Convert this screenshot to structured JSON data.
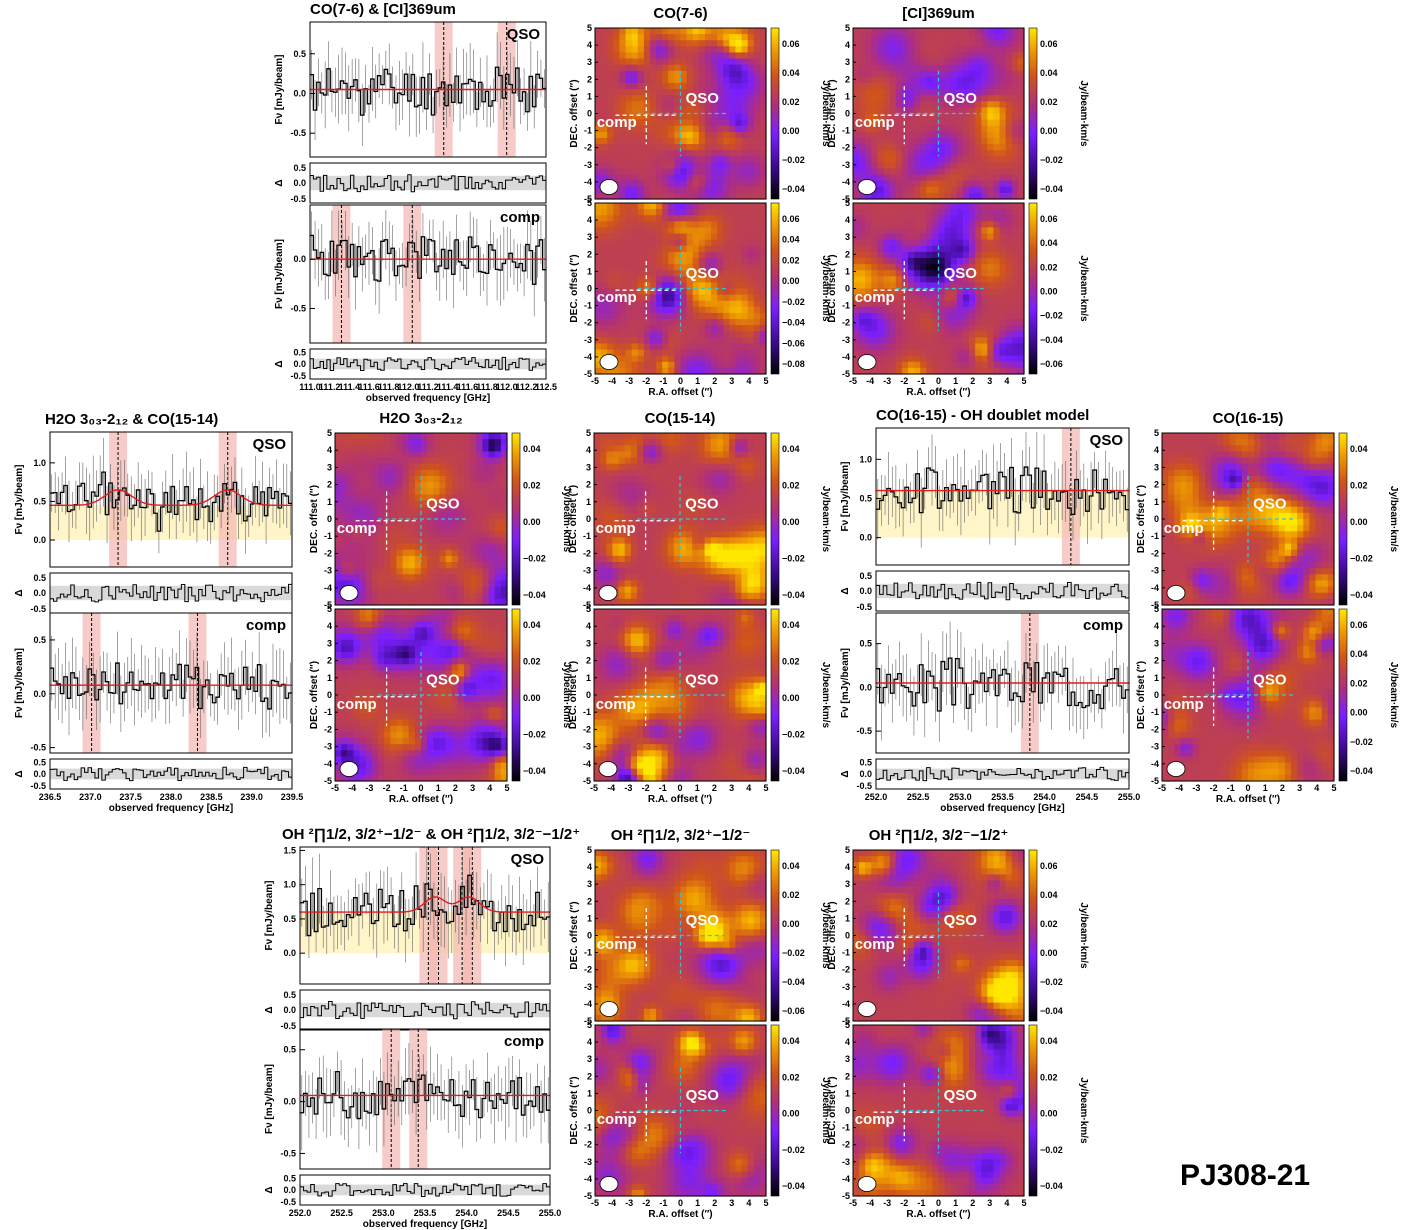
{
  "figure_label": "PJ308-21",
  "labels": {
    "flux_axis": "Fν [mJy/beam]",
    "resid_axis": "Δ",
    "freq_axis": "observed frequency [GHz]",
    "ra_axis": "R.A. offset (″)",
    "dec_axis": "DEC. offset (″)",
    "cbar_unit": "Jy/beam·km/s",
    "qso": "QSO",
    "comp": "comp"
  },
  "colors": {
    "spectrum": "#000000",
    "model": "#e31a1c",
    "line_band": "#f4b6b0",
    "continuum_band": "#fff5c8",
    "resid_band": "#d9d9d9",
    "cross_qso": "#35c4d4",
    "cross_comp": "#ffffff",
    "map_low": "#000000",
    "map_mid1": "#7a1fff",
    "map_mid2": "#c8431e",
    "map_high": "#ffd600"
  },
  "chart_data": [
    {
      "id": "s1",
      "type": "line",
      "title": "CO(7-6) & [CI]369um",
      "target": "QSO",
      "xlabel": "",
      "ylabel": "Fν [mJy/beam]",
      "xlim": [
        111.0,
        112.5
      ],
      "ylim": [
        -0.8,
        0.9
      ],
      "yticks": [
        -0.5,
        0.0,
        0.5
      ],
      "continuum": 0.05,
      "line_markers": [
        111.85,
        112.25
      ],
      "model": "flat",
      "resid_yticks": [
        -0.5,
        0.0,
        0.5
      ],
      "xticks": [],
      "seed": 11
    },
    {
      "id": "s2",
      "type": "line",
      "title": "",
      "target": "comp",
      "xlabel": "observed frequency [GHz]",
      "ylabel": "Fν [mJy/beam]",
      "xlim": [
        111.0,
        112.5
      ],
      "ylim": [
        -0.85,
        0.55
      ],
      "yticks": [
        -0.5,
        0.0
      ],
      "continuum": 0.0,
      "line_markers": [
        111.2,
        111.65
      ],
      "model": "flat",
      "resid_yticks": [
        -0.5,
        0.0,
        0.5
      ],
      "xticks": [
        "111.0",
        "111.2",
        "111.4",
        "111.6",
        "111.8",
        "112.0",
        "111.2",
        "111.4",
        "111.6",
        "111.8",
        "112.0",
        "112.2",
        "112.5"
      ],
      "seed": 23
    },
    {
      "id": "s3",
      "type": "line",
      "title": "H2O 3₀₃-2₁₂ & CO(15-14)",
      "target": "QSO",
      "xlabel": "",
      "ylabel": "Fν [mJy/beam]",
      "xlim": [
        236.3,
        239.5
      ],
      "ylim": [
        -0.35,
        1.4
      ],
      "yticks": [
        0.0,
        0.5,
        1.0
      ],
      "continuum": 0.45,
      "line_markers": [
        237.2,
        238.65
      ],
      "model": "gauss",
      "resid_yticks": [
        -0.5,
        0.0,
        0.5
      ],
      "xticks": [],
      "seed": 37
    },
    {
      "id": "s4",
      "type": "line",
      "title": "",
      "target": "comp",
      "xlabel": "observed frequency [GHz]",
      "ylabel": "Fν [mJy/beam]",
      "xlim": [
        236.3,
        239.5
      ],
      "ylim": [
        -0.55,
        0.75
      ],
      "yticks": [
        -0.5,
        0.0,
        0.5
      ],
      "continuum": 0.08,
      "line_markers": [
        236.85,
        238.25
      ],
      "model": "flat",
      "resid_yticks": [
        -0.5,
        0.0,
        0.5
      ],
      "xticks": [
        "236.5",
        "237.0",
        "237.5",
        "238.0",
        "238.5",
        "239.0",
        "239.5"
      ],
      "seed": 41
    },
    {
      "id": "s5",
      "type": "line",
      "title": "CO(16-15) - OH doublet model",
      "target": "QSO",
      "xlabel": "",
      "ylabel": "Fν [mJy/beam]",
      "xlim": [
        251.7,
        255.4
      ],
      "ylim": [
        -0.35,
        1.4
      ],
      "yticks": [
        0.0,
        0.5,
        1.0
      ],
      "continuum": 0.6,
      "line_markers": [
        254.55
      ],
      "model": "flat",
      "resid_yticks": [
        -0.5,
        0.0,
        0.5
      ],
      "xticks": [],
      "seed": 53
    },
    {
      "id": "s6",
      "type": "line",
      "title": "",
      "target": "comp",
      "xlabel": "observed frequency [GHz]",
      "ylabel": "Fν [mJy/beam]",
      "xlim": [
        251.7,
        255.4
      ],
      "ylim": [
        -0.75,
        0.85
      ],
      "yticks": [
        -0.5,
        0.0,
        0.5
      ],
      "continuum": 0.05,
      "line_markers": [
        253.95
      ],
      "model": "flat",
      "resid_yticks": [
        -0.5,
        0.0,
        0.5
      ],
      "xticks": [
        "252.0",
        "252.5",
        "253.0",
        "253.5",
        "254.0",
        "254.5",
        "255.0"
      ],
      "seed": 67
    },
    {
      "id": "s7",
      "type": "line",
      "title": "OH ²∏1/2, 3/2⁺−1/2⁻ & OH ²∏1/2, 3/2⁻−1/2⁺",
      "target": "QSO",
      "xlabel": "",
      "ylabel": "Fν [mJy/beam]",
      "xlim": [
        251.7,
        255.4
      ],
      "ylim": [
        -0.45,
        1.55
      ],
      "yticks": [
        0.0,
        0.5,
        1.0,
        1.5
      ],
      "continuum": 0.6,
      "line_markers": [
        253.6,
        253.75,
        254.1,
        254.25
      ],
      "model": "double",
      "resid_yticks": [
        -0.5,
        0.0,
        0.5
      ],
      "xticks": [],
      "seed": 79
    },
    {
      "id": "s8",
      "type": "line",
      "title": "",
      "target": "comp",
      "xlabel": "observed frequency [GHz]",
      "ylabel": "Fν [mJy/beam]",
      "xlim": [
        251.7,
        255.4
      ],
      "ylim": [
        -0.65,
        0.7
      ],
      "yticks": [
        -0.5,
        0.0,
        0.5
      ],
      "continuum": 0.06,
      "line_markers": [
        253.05,
        253.45
      ],
      "model": "flat",
      "resid_yticks": [
        -0.5,
        0.0,
        0.5
      ],
      "xticks": [
        "252.0",
        "252.5",
        "253.0",
        "253.5",
        "254.0",
        "254.5",
        "255.0"
      ],
      "seed": 83
    },
    {
      "id": "m1",
      "type": "heatmap",
      "title": "CO(7-6)",
      "xlim": [
        -5,
        5
      ],
      "ylim": [
        -5,
        5
      ],
      "cbar_ticks": [
        "0.06",
        "0.04",
        "0.02",
        "0.00",
        "−0.02",
        "−0.04"
      ],
      "show_ra": false,
      "seed": 101
    },
    {
      "id": "m2",
      "type": "heatmap",
      "title": "",
      "xlim": [
        -5,
        5
      ],
      "ylim": [
        -5,
        5
      ],
      "cbar_ticks": [
        "0.06",
        "0.04",
        "0.02",
        "0.00",
        "−0.02",
        "−0.04",
        "−0.06",
        "−0.08"
      ],
      "show_ra": true,
      "seed": 102
    },
    {
      "id": "m3",
      "type": "heatmap",
      "title": "[CI]369um",
      "xlim": [
        -5,
        5
      ],
      "ylim": [
        -5,
        5
      ],
      "cbar_ticks": [
        "0.06",
        "0.04",
        "0.02",
        "0.00",
        "−0.02",
        "−0.04"
      ],
      "show_ra": false,
      "seed": 103
    },
    {
      "id": "m4",
      "type": "heatmap",
      "title": "",
      "xlim": [
        -5,
        5
      ],
      "ylim": [
        -5,
        5
      ],
      "cbar_ticks": [
        "0.06",
        "0.04",
        "0.02",
        "0.00",
        "−0.02",
        "−0.04",
        "−0.06"
      ],
      "show_ra": true,
      "seed": 104
    },
    {
      "id": "m5",
      "type": "heatmap",
      "title": "H2O 3₀₃-2₁₂",
      "xlim": [
        -5,
        5
      ],
      "ylim": [
        -5,
        5
      ],
      "cbar_ticks": [
        "0.04",
        "0.02",
        "0.00",
        "−0.02",
        "−0.04"
      ],
      "show_ra": false,
      "seed": 105
    },
    {
      "id": "m6",
      "type": "heatmap",
      "title": "",
      "xlim": [
        -5,
        5
      ],
      "ylim": [
        -5,
        5
      ],
      "cbar_ticks": [
        "0.04",
        "0.02",
        "0.00",
        "−0.02",
        "−0.04"
      ],
      "show_ra": true,
      "seed": 106
    },
    {
      "id": "m7",
      "type": "heatmap",
      "title": "CO(15-14)",
      "xlim": [
        -5,
        5
      ],
      "ylim": [
        -5,
        5
      ],
      "cbar_ticks": [
        "0.04",
        "0.02",
        "0.00",
        "−0.02",
        "−0.04"
      ],
      "show_ra": false,
      "seed": 107
    },
    {
      "id": "m8",
      "type": "heatmap",
      "title": "",
      "xlim": [
        -5,
        5
      ],
      "ylim": [
        -5,
        5
      ],
      "cbar_ticks": [
        "0.04",
        "0.02",
        "0.00",
        "−0.02",
        "−0.04"
      ],
      "show_ra": true,
      "seed": 108
    },
    {
      "id": "m9",
      "type": "heatmap",
      "title": "CO(16-15)",
      "xlim": [
        -5,
        5
      ],
      "ylim": [
        -5,
        5
      ],
      "cbar_ticks": [
        "0.04",
        "0.02",
        "0.00",
        "−0.02",
        "−0.04"
      ],
      "show_ra": false,
      "seed": 109
    },
    {
      "id": "m10",
      "type": "heatmap",
      "title": "",
      "xlim": [
        -5,
        5
      ],
      "ylim": [
        -5,
        5
      ],
      "cbar_ticks": [
        "0.06",
        "0.04",
        "0.02",
        "0.00",
        "−0.02",
        "−0.04"
      ],
      "show_ra": true,
      "seed": 110
    },
    {
      "id": "m11",
      "type": "heatmap",
      "title": "OH ²∏1/2, 3/2⁺−1/2⁻",
      "xlim": [
        -5,
        5
      ],
      "ylim": [
        -5,
        5
      ],
      "cbar_ticks": [
        "0.04",
        "0.02",
        "0.00",
        "−0.02",
        "−0.04",
        "−0.06"
      ],
      "show_ra": false,
      "seed": 111
    },
    {
      "id": "m12",
      "type": "heatmap",
      "title": "",
      "xlim": [
        -5,
        5
      ],
      "ylim": [
        -5,
        5
      ],
      "cbar_ticks": [
        "0.04",
        "0.02",
        "0.00",
        "−0.02",
        "−0.04"
      ],
      "show_ra": true,
      "seed": 112
    },
    {
      "id": "m13",
      "type": "heatmap",
      "title": "OH ²∏1/2, 3/2⁻−1/2⁺",
      "xlim": [
        -5,
        5
      ],
      "ylim": [
        -5,
        5
      ],
      "cbar_ticks": [
        "0.06",
        "0.04",
        "0.02",
        "0.00",
        "−0.02",
        "−0.04"
      ],
      "show_ra": false,
      "seed": 113
    },
    {
      "id": "m14",
      "type": "heatmap",
      "title": "",
      "xlim": [
        -5,
        5
      ],
      "ylim": [
        -5,
        5
      ],
      "cbar_ticks": [
        "0.04",
        "0.02",
        "0.00",
        "−0.02",
        "−0.04"
      ],
      "show_ra": true,
      "seed": 114
    }
  ]
}
